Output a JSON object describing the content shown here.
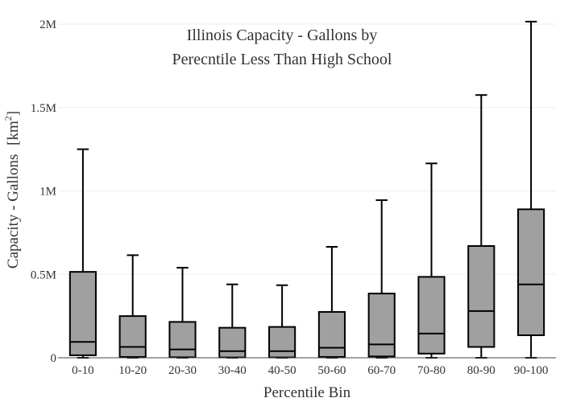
{
  "chart_data": {
    "type": "box",
    "title": [
      "Illinois Capacity - Gallons by",
      "Perecntile Less Than High School"
    ],
    "xlabel": "Percentile Bin",
    "ylabel": "Capacity - Gallons",
    "ylabel_unit_base": "[km",
    "ylabel_unit_sup": "2",
    "ylabel_unit_close": "]",
    "ylim": [
      0,
      2000000
    ],
    "yticks": [
      {
        "value": 0,
        "label": "0"
      },
      {
        "value": 500000,
        "label": "0.5M"
      },
      {
        "value": 1000000,
        "label": "1M"
      },
      {
        "value": 1500000,
        "label": "1.5M"
      },
      {
        "value": 2000000,
        "label": "2M"
      }
    ],
    "grid": true,
    "legend": "none",
    "box_color": "#a0a0a0",
    "line_color": "#000000",
    "categories": [
      "0-10",
      "10-20",
      "20-30",
      "30-40",
      "40-50",
      "50-60",
      "60-70",
      "70-80",
      "80-90",
      "90-100"
    ],
    "boxes": [
      {
        "min": 0,
        "q1": 15000,
        "median": 95000,
        "q3": 515000,
        "max": 1250000
      },
      {
        "min": 0,
        "q1": 5000,
        "median": 65000,
        "q3": 250000,
        "max": 615000
      },
      {
        "min": 0,
        "q1": 3000,
        "median": 50000,
        "q3": 215000,
        "max": 540000
      },
      {
        "min": 0,
        "q1": 2000,
        "median": 40000,
        "q3": 180000,
        "max": 440000
      },
      {
        "min": 0,
        "q1": 2000,
        "median": 40000,
        "q3": 185000,
        "max": 435000
      },
      {
        "min": 0,
        "q1": 5000,
        "median": 60000,
        "q3": 275000,
        "max": 665000
      },
      {
        "min": 0,
        "q1": 8000,
        "median": 80000,
        "q3": 385000,
        "max": 945000
      },
      {
        "min": 0,
        "q1": 25000,
        "median": 145000,
        "q3": 485000,
        "max": 1165000
      },
      {
        "min": 0,
        "q1": 65000,
        "median": 280000,
        "q3": 670000,
        "max": 1575000
      },
      {
        "min": 0,
        "q1": 135000,
        "median": 440000,
        "q3": 890000,
        "max": 2015000
      }
    ]
  }
}
